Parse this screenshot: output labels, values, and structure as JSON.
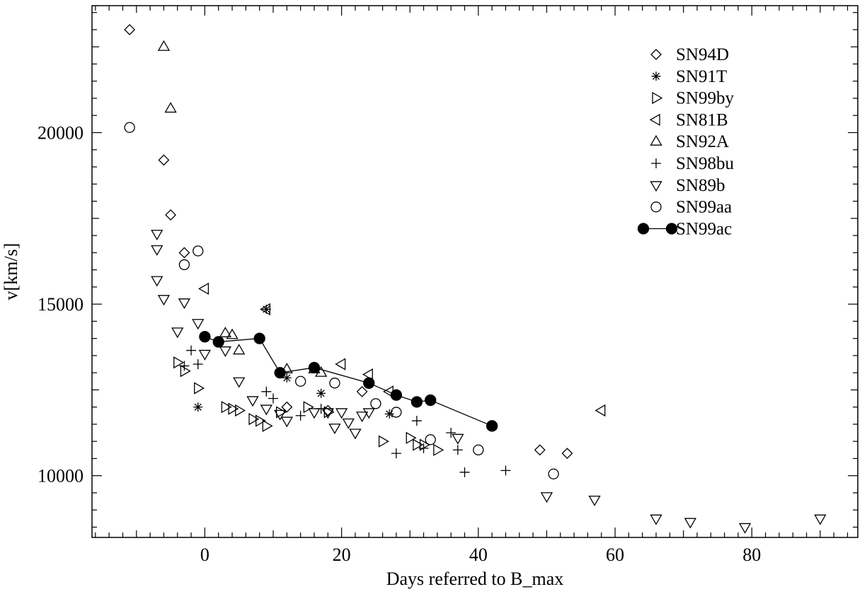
{
  "chart_data": {
    "type": "scatter",
    "title": "",
    "xlabel": "Days referred to B_max",
    "ylabel": "v[km/s]",
    "xlim": [
      -16.5,
      95.5
    ],
    "ylim": [
      8200,
      23700
    ],
    "xticks_major": [
      0,
      20,
      40,
      60,
      80
    ],
    "xtick_labels": [
      "0",
      "20",
      "40",
      "60",
      "80"
    ],
    "yticks_major": [
      10000,
      15000,
      20000
    ],
    "ytick_labels": [
      "10000",
      "15000",
      "20000"
    ],
    "grid": false,
    "legend_position": "top-right",
    "series": [
      {
        "name": "SN94D",
        "marker": "diamond",
        "points": [
          [
            -11,
            23000
          ],
          [
            -6,
            19200
          ],
          [
            -5,
            17600
          ],
          [
            -3,
            16500
          ],
          [
            12,
            12000
          ],
          [
            18,
            11900
          ],
          [
            23,
            12450
          ],
          [
            49,
            10750
          ],
          [
            53,
            10650
          ]
        ]
      },
      {
        "name": "SN91T",
        "marker": "asterisk",
        "points": [
          [
            -1,
            12000
          ],
          [
            9,
            14850
          ],
          [
            12,
            12850
          ],
          [
            17,
            12400
          ],
          [
            27,
            11800
          ]
        ]
      },
      {
        "name": "SN99by",
        "marker": "triangle-right",
        "points": [
          [
            -4,
            13300
          ],
          [
            -3,
            13050
          ],
          [
            -1,
            12550
          ],
          [
            3,
            12000
          ],
          [
            4,
            11950
          ],
          [
            5,
            11900
          ],
          [
            7,
            11650
          ],
          [
            8,
            11600
          ],
          [
            9,
            11450
          ],
          [
            11,
            11850
          ],
          [
            15,
            12000
          ],
          [
            18,
            11850
          ],
          [
            26,
            11000
          ],
          [
            30,
            11100
          ],
          [
            31,
            10900
          ],
          [
            32,
            10900
          ],
          [
            34,
            10750
          ]
        ]
      },
      {
        "name": "SN81B",
        "marker": "triangle-left",
        "points": [
          [
            0,
            15450
          ],
          [
            9,
            14850
          ],
          [
            20,
            13250
          ],
          [
            24,
            12950
          ],
          [
            27,
            12450
          ],
          [
            58,
            11900
          ]
        ]
      },
      {
        "name": "SN92A",
        "marker": "triangle-up",
        "points": [
          [
            -6,
            22500
          ],
          [
            -5,
            20700
          ],
          [
            3,
            14150
          ],
          [
            4,
            14100
          ],
          [
            5,
            13650
          ],
          [
            12,
            13100
          ],
          [
            16,
            13100
          ],
          [
            17,
            13000
          ]
        ]
      },
      {
        "name": "SN98bu",
        "marker": "plus",
        "points": [
          [
            -3,
            13200
          ],
          [
            -2,
            13650
          ],
          [
            -1,
            13250
          ],
          [
            9,
            12450
          ],
          [
            10,
            12250
          ],
          [
            14,
            11750
          ],
          [
            17,
            11950
          ],
          [
            28,
            10650
          ],
          [
            31,
            11600
          ],
          [
            32,
            10800
          ],
          [
            36,
            11250
          ],
          [
            37,
            10750
          ],
          [
            38,
            10100
          ],
          [
            44,
            10150
          ]
        ]
      },
      {
        "name": "SN89b",
        "marker": "triangle-down",
        "points": [
          [
            -7,
            17050
          ],
          [
            -7,
            16600
          ],
          [
            -7,
            15700
          ],
          [
            -6,
            15150
          ],
          [
            -3,
            15050
          ],
          [
            -4,
            14200
          ],
          [
            -1,
            14450
          ],
          [
            0,
            13550
          ],
          [
            3,
            13650
          ],
          [
            5,
            12750
          ],
          [
            7,
            12200
          ],
          [
            9,
            11950
          ],
          [
            11,
            11800
          ],
          [
            12,
            11600
          ],
          [
            16,
            11850
          ],
          [
            18,
            11850
          ],
          [
            19,
            11400
          ],
          [
            20,
            11850
          ],
          [
            21,
            11550
          ],
          [
            22,
            11250
          ],
          [
            23,
            11750
          ],
          [
            24,
            11850
          ],
          [
            37,
            11100
          ],
          [
            50,
            9400
          ],
          [
            57,
            9300
          ],
          [
            66,
            8750
          ],
          [
            71,
            8650
          ],
          [
            79,
            8500
          ],
          [
            90,
            8750
          ]
        ]
      },
      {
        "name": "SN99aa",
        "marker": "circle",
        "points": [
          [
            -11,
            20150
          ],
          [
            -3,
            16150
          ],
          [
            -1,
            16550
          ],
          [
            14,
            12750
          ],
          [
            19,
            12700
          ],
          [
            25,
            12100
          ],
          [
            28,
            11850
          ],
          [
            33,
            11050
          ],
          [
            40,
            10750
          ],
          [
            51,
            10050
          ]
        ]
      },
      {
        "name": "SN99ac",
        "marker": "filled-circle-line",
        "points": [
          [
            0,
            14050
          ],
          [
            2,
            13900
          ],
          [
            8,
            14000
          ],
          [
            11,
            13000
          ],
          [
            16,
            13150
          ],
          [
            24,
            12700
          ],
          [
            28,
            12350
          ],
          [
            31,
            12150
          ],
          [
            33,
            12200
          ],
          [
            42,
            11450
          ]
        ]
      }
    ]
  }
}
